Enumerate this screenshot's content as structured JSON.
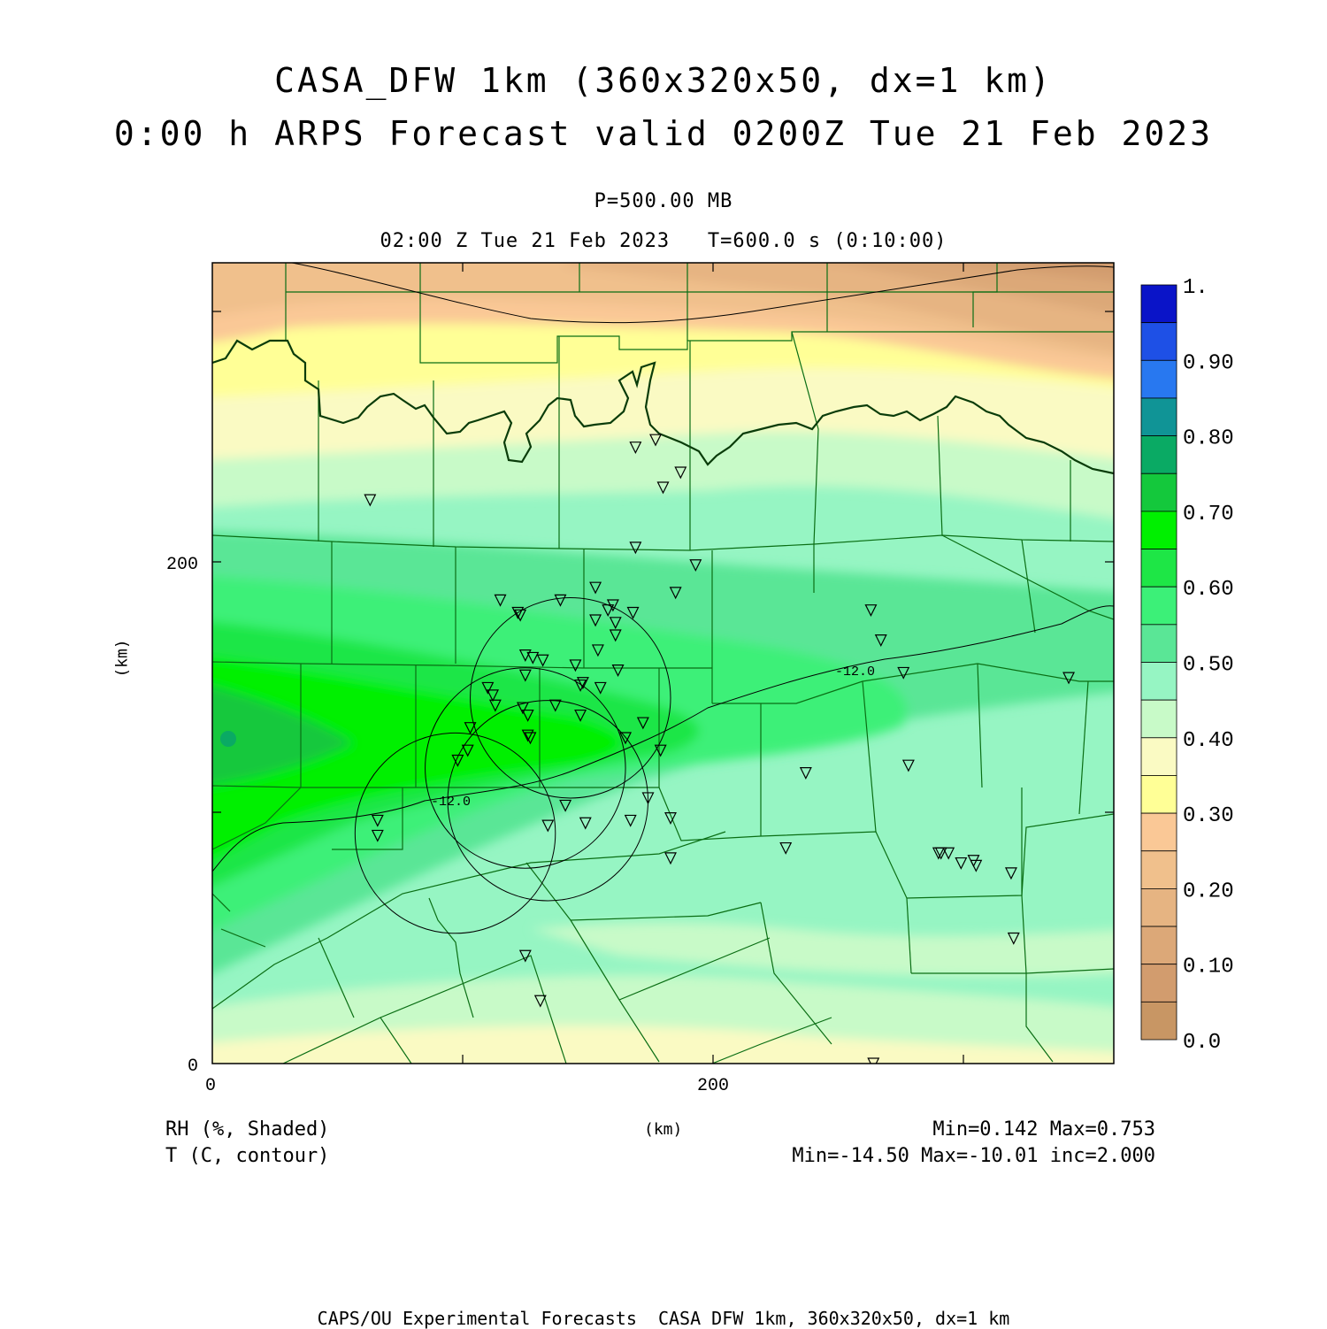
{
  "title": {
    "line1": "CASA_DFW 1km (360x320x50, dx=1 km)",
    "line2": "0:00 h ARPS Forecast valid 0200Z Tue 21 Feb 2023"
  },
  "subtitle": {
    "level": "P=500.00 MB",
    "time": "02:00 Z Tue 21 Feb 2023   T=600.0 s (0:10:00)"
  },
  "axes": {
    "x_ticks": [
      "0",
      "200"
    ],
    "y_ticks": [
      "0",
      "200"
    ],
    "x_unit": "(km)",
    "y_unit": "(km)",
    "x_range_km": [
      0,
      360
    ],
    "y_range_km": [
      0,
      320
    ]
  },
  "colorbar": {
    "labels": [
      "1.",
      "0.90",
      "0.80",
      "0.70",
      "0.60",
      "0.50",
      "0.40",
      "0.30",
      "0.20",
      "0.10",
      "0.0"
    ],
    "colors": [
      "#0a14c8",
      "#1e50e6",
      "#2878f0",
      "#109496",
      "#0aaa64",
      "#14c83c",
      "#00f000",
      "#1ee646",
      "#3cf078",
      "#5ae696",
      "#96f5c3",
      "#c8fac8",
      "#fafac3",
      "#ffff96",
      "#fac896",
      "#f0c08c",
      "#e6b482",
      "#dca878",
      "#d29c6e",
      "#c89664"
    ]
  },
  "legend": {
    "shaded": "RH (%, Shaded)",
    "contour": "T (C, contour)",
    "shaded_stats": "Min=0.142 Max=0.753",
    "contour_stats": "Min=-14.50 Max=-10.01 inc=2.000",
    "contour_label": "-12.0"
  },
  "footer": "CAPS/OU Experimental Forecasts  CASA DFW 1km, 360x320x50, dx=1 km",
  "stations": [
    [
      63,
      225
    ],
    [
      66,
      91
    ],
    [
      66,
      97
    ],
    [
      115,
      185
    ],
    [
      102,
      125
    ],
    [
      98,
      121
    ],
    [
      103,
      134
    ],
    [
      110,
      150
    ],
    [
      112,
      147
    ],
    [
      113,
      143
    ],
    [
      122,
      180
    ],
    [
      123,
      179
    ],
    [
      125,
      163
    ],
    [
      125,
      155
    ],
    [
      124,
      142
    ],
    [
      126,
      139
    ],
    [
      126,
      131
    ],
    [
      127,
      130
    ],
    [
      128,
      162
    ],
    [
      132,
      161
    ],
    [
      134,
      95
    ],
    [
      137,
      143
    ],
    [
      139,
      185
    ],
    [
      141,
      103
    ],
    [
      145,
      159
    ],
    [
      147,
      151
    ],
    [
      147,
      139
    ],
    [
      148,
      152
    ],
    [
      149,
      96
    ],
    [
      153,
      190
    ],
    [
      154,
      165
    ],
    [
      155,
      150
    ],
    [
      153,
      177
    ],
    [
      158,
      181
    ],
    [
      160,
      183
    ],
    [
      161,
      176
    ],
    [
      161,
      171
    ],
    [
      162,
      157
    ],
    [
      165,
      130
    ],
    [
      168,
      180
    ],
    [
      167,
      97
    ],
    [
      172,
      136
    ],
    [
      174,
      106
    ],
    [
      179,
      125
    ],
    [
      177,
      249
    ],
    [
      169,
      246
    ],
    [
      169,
      206
    ],
    [
      180,
      230
    ],
    [
      185,
      188
    ],
    [
      187,
      236
    ],
    [
      193,
      199
    ],
    [
      183,
      98
    ],
    [
      183,
      82
    ],
    [
      229,
      86
    ],
    [
      237,
      116
    ],
    [
      263,
      181
    ],
    [
      276,
      156
    ],
    [
      267,
      169
    ],
    [
      278,
      119
    ],
    [
      290,
      84
    ],
    [
      291,
      84
    ],
    [
      294,
      84
    ],
    [
      299,
      80
    ],
    [
      304,
      81
    ],
    [
      305,
      79
    ],
    [
      319,
      76
    ],
    [
      320,
      50
    ],
    [
      342,
      154
    ],
    [
      264,
      0
    ],
    [
      125,
      43
    ],
    [
      131,
      25
    ]
  ],
  "rings": [
    [
      143,
      146,
      40
    ],
    [
      125,
      118,
      40
    ],
    [
      134,
      105,
      40
    ],
    [
      97,
      92,
      40
    ]
  ]
}
